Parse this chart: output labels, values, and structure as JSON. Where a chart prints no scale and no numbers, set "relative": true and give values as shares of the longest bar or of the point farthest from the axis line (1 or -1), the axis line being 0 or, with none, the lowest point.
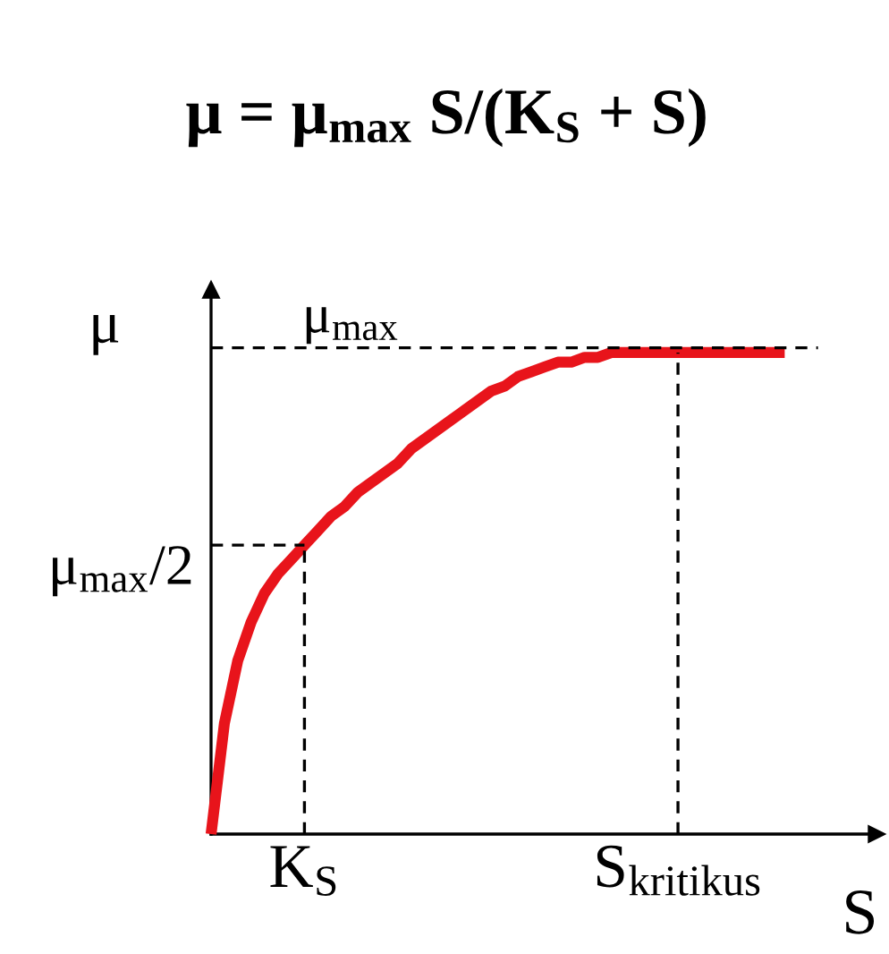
{
  "chart_data": {
    "type": "line",
    "title": "μ = μ$_{max}$ S/(K$_{S}$ + S)",
    "xlabel": "S",
    "ylabel": "μ",
    "relative": true,
    "tick_labels": "x",
    "categories": [
      null,
      null,
      null,
      null,
      null,
      null,
      null,
      "K$_{S}$",
      null,
      null,
      null,
      null,
      null,
      null,
      null,
      null,
      null,
      null,
      null,
      null,
      null,
      null,
      null,
      null,
      null,
      null,
      null,
      null,
      null,
      null,
      null,
      null,
      null,
      null,
      null,
      "S$_{kritikus}$",
      null,
      null,
      null,
      null,
      null,
      null,
      null,
      null
    ],
    "series": [
      {
        "color": "#e8141b",
        "values": [
          0,
          0.23,
          0.36,
          0.44,
          0.5,
          0.54,
          0.57,
          0.6,
          0.63,
          0.66,
          0.68,
          0.71,
          0.73,
          0.75,
          0.77,
          0.8,
          0.82,
          0.84,
          0.86,
          0.88,
          0.9,
          0.92,
          0.93,
          0.95,
          0.96,
          0.97,
          0.98,
          0.98,
          0.99,
          0.99,
          1.0,
          1.0,
          1.0,
          1.0,
          1.0,
          1.0,
          1.0,
          1.0,
          1.0,
          1.0,
          1.0,
          1.0,
          1.0,
          1.0
        ]
      }
    ],
    "line_style": "solid",
    "marker": "none",
    "ref_lines": [
      {
        "axis": "y",
        "value": 1.01,
        "label": null,
        "color": "#000000",
        "line_style": "dashed"
      },
      {
        "axis": "y",
        "value": 0.6,
        "label": "μ$_{max}$/2",
        "color": "#000000",
        "line_style": "dashed"
      },
      {
        "axis": "x",
        "value": "K$_{S}$",
        "label": null,
        "color": "#000000",
        "line_style": "dashed"
      },
      {
        "axis": "x",
        "value": "S$_{kritikus}$",
        "label": null,
        "color": "#000000",
        "line_style": "dashed"
      }
    ],
    "annotations": [
      "μ$_{max}$"
    ]
  }
}
